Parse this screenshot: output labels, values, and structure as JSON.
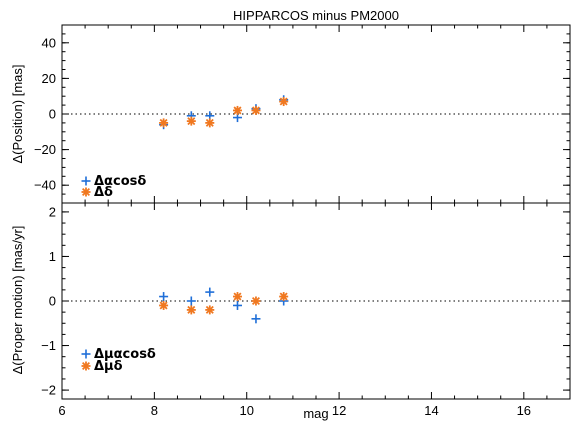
{
  "chart_data": [
    {
      "type": "scatter",
      "title": "HIPPARCOS minus PM2000",
      "xlabel": "",
      "ylabel": "Δ(Position) [mas]",
      "xlim": [
        6,
        17
      ],
      "ylim": [
        -50,
        50
      ],
      "xticks": [
        6,
        8,
        10,
        12,
        14,
        16
      ],
      "yticks": [
        -40,
        -20,
        0,
        20,
        40
      ],
      "reference_line": 0,
      "grid": false,
      "legend_position": "bottom-left",
      "series": [
        {
          "name": "Δαcosδ",
          "marker": "plus",
          "color": "#1f6fd8",
          "x": [
            8.2,
            8.8,
            9.2,
            9.8,
            10.2,
            10.8
          ],
          "y": [
            -6,
            -1,
            -1,
            -2,
            3,
            8
          ]
        },
        {
          "name": "Δδ",
          "marker": "asterisk",
          "color": "#f07820",
          "x": [
            8.2,
            8.8,
            9.2,
            9.8,
            10.2,
            10.8
          ],
          "y": [
            -5,
            -4,
            -5,
            2,
            2,
            7
          ]
        }
      ]
    },
    {
      "type": "scatter",
      "title": "",
      "xlabel": "mag",
      "ylabel": "Δ(Proper motion) [mas/yr]",
      "xlim": [
        6,
        17
      ],
      "ylim": [
        -2.2,
        2.2
      ],
      "xticks": [
        6,
        8,
        10,
        12,
        14,
        16
      ],
      "yticks": [
        -2,
        -1,
        0,
        1,
        2
      ],
      "reference_line": 0,
      "grid": false,
      "legend_position": "bottom-left",
      "series": [
        {
          "name": "Δμαcosδ",
          "marker": "plus",
          "color": "#1f6fd8",
          "x": [
            8.2,
            8.8,
            9.2,
            9.8,
            10.2,
            10.8
          ],
          "y": [
            0.1,
            0.0,
            0.2,
            -0.1,
            -0.4,
            0.0
          ]
        },
        {
          "name": "Δμδ",
          "marker": "asterisk",
          "color": "#f07820",
          "x": [
            8.2,
            8.8,
            9.2,
            9.8,
            10.2,
            10.8
          ],
          "y": [
            -0.1,
            -0.2,
            -0.2,
            0.1,
            0.0,
            0.1
          ]
        }
      ]
    }
  ]
}
